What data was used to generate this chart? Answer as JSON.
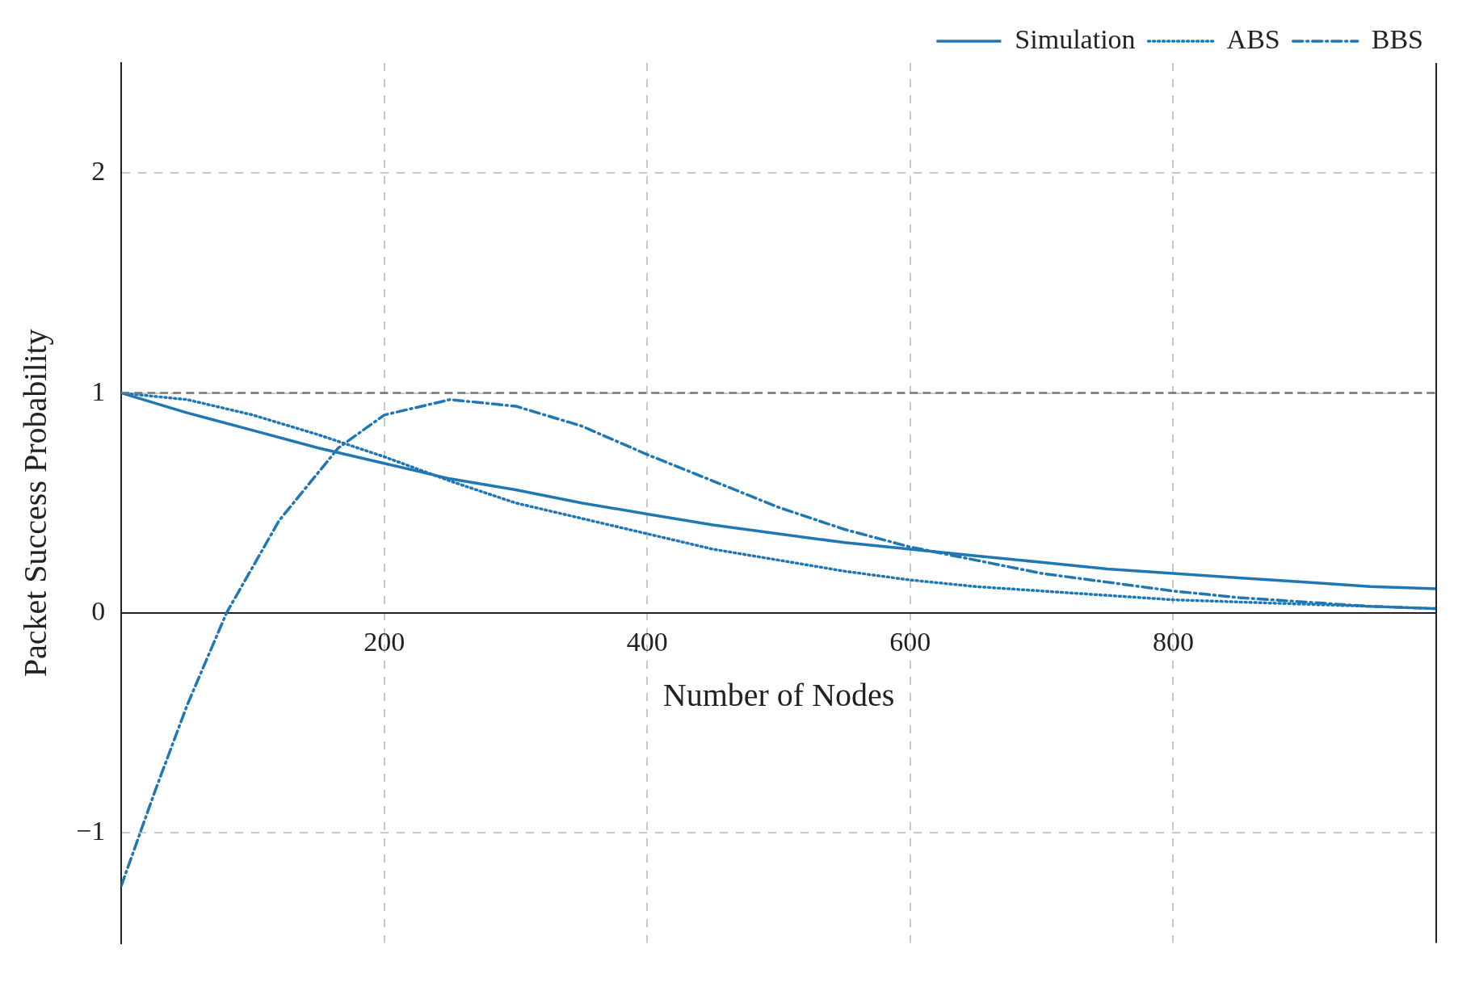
{
  "chart_data": {
    "type": "line",
    "xlabel": "Number of Nodes",
    "ylabel": "Packet Success Probability",
    "xlim": [
      0,
      1000
    ],
    "xticks": [
      {
        "value": 0,
        "label": null
      },
      200,
      400,
      600,
      800,
      {
        "value": 1000,
        "label": null
      }
    ],
    "ylim": [
      -1.5,
      2.5
    ],
    "yticks": [
      -1,
      0,
      1,
      2
    ],
    "grid": true,
    "legend": "top right",
    "marker": "none",
    "ref_lines": [
      {
        "axis": "y",
        "value": 1,
        "label": null,
        "color": "#777777",
        "line_style": "dashed"
      }
    ],
    "series": [
      {
        "name": "Simulation",
        "color": "#1f77b4",
        "line_style": "solid",
        "x": [
          0,
          50,
          100,
          150,
          200,
          250,
          300,
          350,
          400,
          450,
          500,
          550,
          600,
          650,
          700,
          750,
          800,
          850,
          900,
          950,
          1000
        ],
        "values": [
          1,
          0.91,
          0.83,
          0.75,
          0.68,
          0.61,
          0.56,
          0.5,
          0.45,
          0.4,
          0.36,
          0.32,
          0.29,
          0.26,
          0.23,
          0.2,
          0.18,
          0.16,
          0.14,
          0.12,
          0.11
        ]
      },
      {
        "name": "ABS",
        "color": "#1f77b4",
        "line_style": "dotted",
        "x": [
          0,
          50,
          100,
          150,
          200,
          250,
          300,
          350,
          400,
          450,
          500,
          550,
          600,
          650,
          700,
          750,
          800,
          850,
          900,
          950,
          1000
        ],
        "values": [
          1,
          0.97,
          0.9,
          0.81,
          0.71,
          0.6,
          0.5,
          0.43,
          0.36,
          0.29,
          0.24,
          0.19,
          0.15,
          0.12,
          0.1,
          0.08,
          0.06,
          0.05,
          0.04,
          0.03,
          0.02
        ]
      },
      {
        "name": "BBS",
        "color": "#1f77b4",
        "line_style": "dashdot",
        "x": [
          0,
          25,
          50,
          80,
          120,
          165,
          200,
          250,
          300,
          350,
          400,
          450,
          500,
          550,
          600,
          650,
          700,
          750,
          800,
          850,
          900,
          950,
          1000
        ],
        "values": [
          -1.24,
          -0.82,
          -0.42,
          0,
          0.42,
          0.75,
          0.9,
          0.97,
          0.94,
          0.85,
          0.72,
          0.6,
          0.48,
          0.38,
          0.3,
          0.24,
          0.18,
          0.14,
          0.1,
          0.07,
          0.05,
          0.03,
          0.02
        ]
      }
    ]
  }
}
